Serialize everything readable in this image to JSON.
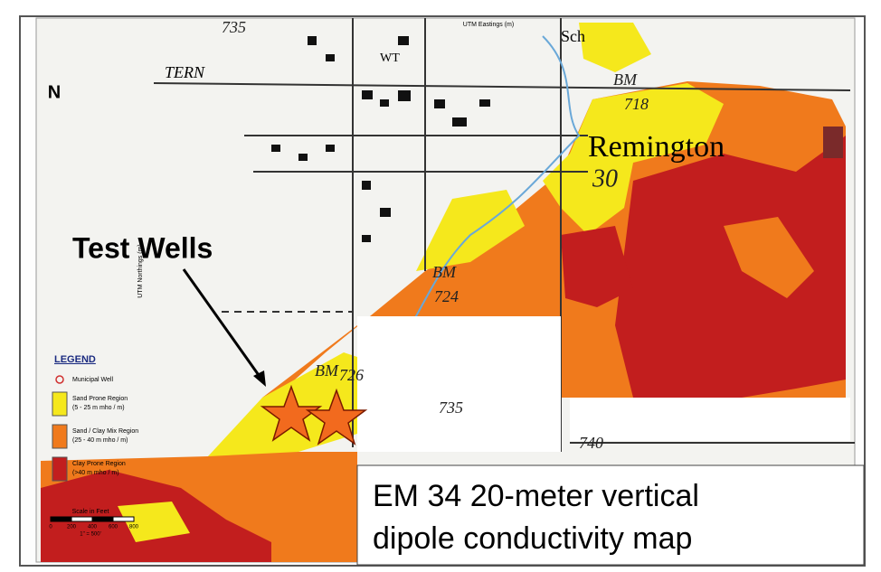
{
  "map": {
    "north_label": "N",
    "easting_axis_label": "UTM Eastings (m)",
    "northing_axis_label": "UTM Northings (m)",
    "place_labels": [
      "Remington",
      "Sch",
      "TERN",
      "WT"
    ],
    "elevation_labels": [
      "735",
      "718",
      "30",
      "BM",
      "724",
      "BM",
      "726",
      "735",
      "740",
      "BM"
    ],
    "callout": "Test Wells",
    "caption": [
      "EM 34  20-meter vertical",
      "dipole conductivity map"
    ],
    "legend": {
      "title": "LEGEND",
      "items": [
        {
          "label": "Municipal Well",
          "color": "#d03030"
        },
        {
          "label": "Sand Prone Region",
          "sub": "(5 - 25 m mho / m)",
          "color": "#f5e81c"
        },
        {
          "label": "Sand / Clay Mix Region",
          "sub": "(25 - 40 m mho / m)",
          "color": "#f07a1c"
        },
        {
          "label": "Clay Prone Region",
          "sub": "(>40 m mho / m)",
          "color": "#c21e1e"
        }
      ],
      "scale_title": "Scale in Feet",
      "scale_ticks": [
        "0",
        "200",
        "400",
        "600",
        "800"
      ],
      "scale_note": "1\" = 500'"
    }
  }
}
